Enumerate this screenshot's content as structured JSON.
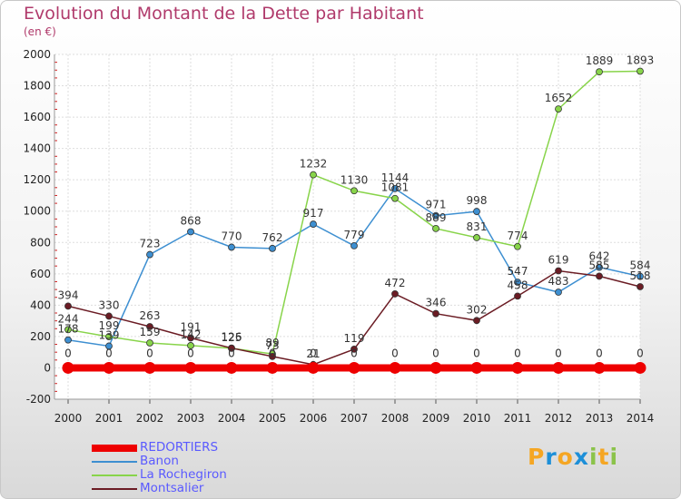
{
  "chart_data": {
    "type": "line",
    "title": "Evolution du Montant de la Dette par Habitant",
    "subtitle": "(en €)",
    "xlabel": "",
    "ylabel": "",
    "ylim": [
      -200,
      2000
    ],
    "yticks": [
      -200,
      0,
      200,
      400,
      600,
      800,
      1000,
      1200,
      1400,
      1600,
      1800,
      2000
    ],
    "x": [
      "2000",
      "2001",
      "2002",
      "2003",
      "2004",
      "2005",
      "2006",
      "2007",
      "2008",
      "2009",
      "2010",
      "2011",
      "2012",
      "2013",
      "2014"
    ],
    "legend_position": "bottom-left",
    "series": [
      {
        "name": "REDORTIERS",
        "color": "#ee0000",
        "values": [
          0,
          0,
          0,
          0,
          0,
          0,
          0,
          0,
          0,
          0,
          0,
          0,
          0,
          0,
          0
        ]
      },
      {
        "name": "Banon",
        "color": "#3d8fd1",
        "values": [
          178,
          139,
          723,
          868,
          770,
          762,
          917,
          779,
          1144,
          971,
          998,
          547,
          483,
          642,
          584
        ]
      },
      {
        "name": "La Rochegiron",
        "color": "#88d44a",
        "values": [
          244,
          199,
          159,
          142,
          125,
          89,
          1232,
          1130,
          1081,
          889,
          831,
          774,
          1652,
          1889,
          1893
        ]
      },
      {
        "name": "Montsalier",
        "color": "#6b1c24",
        "values": [
          394,
          330,
          263,
          191,
          126,
          73,
          21,
          119,
          472,
          346,
          302,
          458,
          619,
          585,
          518
        ]
      }
    ],
    "data_labels": [
      [
        "0",
        "0",
        "0",
        "0",
        "0",
        "0",
        "0",
        "0",
        "0",
        "0",
        "0",
        "0",
        "0",
        "0",
        "0"
      ],
      [
        "178",
        "139",
        "723",
        "868",
        "770",
        "762",
        "917",
        "779",
        "1144",
        "971",
        "998",
        "547",
        "483",
        "642",
        "584"
      ],
      [
        "244",
        "199",
        "159",
        "142",
        "125",
        "89",
        "1232",
        "1130",
        "1081",
        "889",
        "831",
        "774",
        "1652",
        "1889",
        "1893"
      ],
      [
        "394",
        "330",
        "263",
        "191",
        "126",
        "73",
        "21",
        "119",
        "472",
        "346",
        "302",
        "458",
        "619",
        "585",
        "518"
      ]
    ]
  },
  "logo": {
    "text": [
      "P",
      "r",
      "o",
      "x",
      "i",
      "t",
      "i"
    ],
    "colors": [
      "#f5a623",
      "#1d8fd8",
      "#f5a623",
      "#1d8fd8",
      "#8bc34a",
      "#f5a623",
      "#8bc34a"
    ]
  }
}
